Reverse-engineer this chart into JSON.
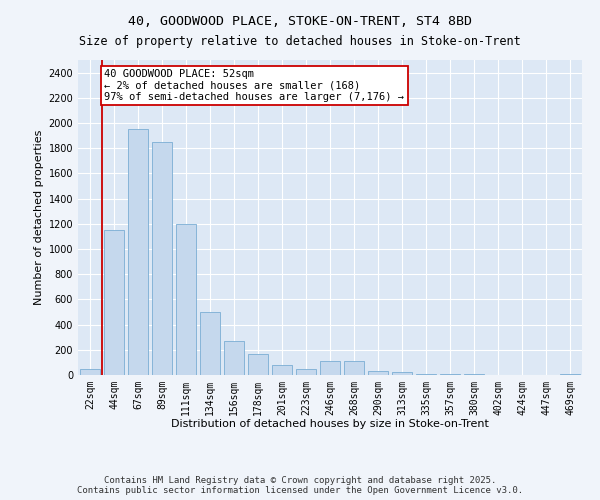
{
  "title_line1": "40, GOODWOOD PLACE, STOKE-ON-TRENT, ST4 8BD",
  "title_line2": "Size of property relative to detached houses in Stoke-on-Trent",
  "xlabel": "Distribution of detached houses by size in Stoke-on-Trent",
  "ylabel": "Number of detached properties",
  "categories": [
    "22sqm",
    "44sqm",
    "67sqm",
    "89sqm",
    "111sqm",
    "134sqm",
    "156sqm",
    "178sqm",
    "201sqm",
    "223sqm",
    "246sqm",
    "268sqm",
    "290sqm",
    "313sqm",
    "335sqm",
    "357sqm",
    "380sqm",
    "402sqm",
    "424sqm",
    "447sqm",
    "469sqm"
  ],
  "values": [
    50,
    1150,
    1950,
    1850,
    1200,
    500,
    270,
    170,
    80,
    50,
    110,
    110,
    30,
    20,
    10,
    5,
    5,
    2,
    2,
    1,
    5
  ],
  "bar_color": "#c5d8ed",
  "bar_edge_color": "#7aadd4",
  "background_color": "#dde8f5",
  "grid_color": "#ffffff",
  "fig_background": "#f0f4fa",
  "annotation_box_color": "#cc0000",
  "annotation_text": "40 GOODWOOD PLACE: 52sqm\n← 2% of detached houses are smaller (168)\n97% of semi-detached houses are larger (7,176) →",
  "property_line_x": 0.5,
  "ylim": [
    0,
    2500
  ],
  "yticks": [
    0,
    200,
    400,
    600,
    800,
    1000,
    1200,
    1400,
    1600,
    1800,
    2000,
    2200,
    2400
  ],
  "footnote": "Contains HM Land Registry data © Crown copyright and database right 2025.\nContains public sector information licensed under the Open Government Licence v3.0.",
  "title_fontsize": 9.5,
  "subtitle_fontsize": 8.5,
  "axis_label_fontsize": 8,
  "tick_fontsize": 7,
  "annotation_fontsize": 7.5,
  "footnote_fontsize": 6.5
}
